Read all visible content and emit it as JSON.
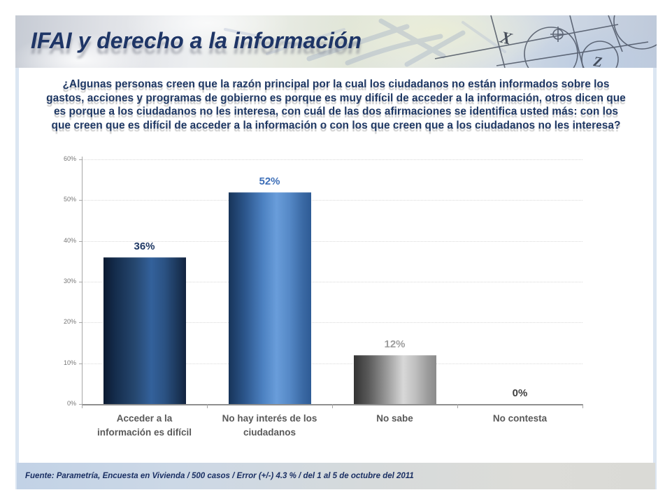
{
  "header": {
    "title": "IFAI y derecho a la información",
    "decoration_glyphs": [
      "X",
      "Z"
    ]
  },
  "question": {
    "text": "¿Algunas personas creen que la razón principal por la cual los ciudadanos no están informados sobre los gastos, acciones y programas de gobierno es porque es muy difícil de acceder a la información, otros dicen que es porque a los ciudadanos no les interesa, con cuál de las dos afirmaciones se identifica usted más: con los que creen que es difícil de acceder a la información o con los que creen que a los ciudadanos no les interesa?"
  },
  "chart_data": {
    "type": "bar",
    "title": "",
    "categories": [
      "Acceder a la información es difícil",
      "No hay interés de los ciudadanos",
      "No sabe",
      "No contesta"
    ],
    "category_lines": [
      [
        "Acceder a la",
        "información es difícil"
      ],
      [
        "No hay interés de los",
        "ciudadanos"
      ],
      [
        "No sabe"
      ],
      [
        "No contesta"
      ]
    ],
    "values": [
      36,
      52,
      12,
      0
    ],
    "data_labels": [
      "36%",
      "52%",
      "12%",
      "0%"
    ],
    "xlabel": "",
    "ylabel": "",
    "ylim": [
      0,
      60
    ],
    "y_ticks": [
      0,
      10,
      20,
      30,
      40,
      50,
      60
    ],
    "y_tick_labels": [
      "0%",
      "10%",
      "20%",
      "30%",
      "40%",
      "50%",
      "60%"
    ],
    "grid": true,
    "legend": false,
    "axis_color": "#a6a6a6",
    "baseline_color": "#8f8f8f",
    "gridline_color": "#d9d9d9",
    "tick_label_color": "#757575",
    "category_label_color": "#595959",
    "bar_styles": [
      {
        "stops": [
          "#0b1a31 0%",
          "#142c4c 14%",
          "#26476f 38%",
          "#33619b 58%",
          "#2b5283 74%",
          "#1b3659 90%",
          "#12233f 100%"
        ],
        "label_color": "#1f3864"
      },
      {
        "stops": [
          "#173459 0%",
          "#2c568c 20%",
          "#4d82c2 42%",
          "#699dda 58%",
          "#5588c6 74%",
          "#3a69a4 90%",
          "#2e5b95 100%"
        ],
        "label_color": "#3e6fb8"
      },
      {
        "stops": [
          "#333333 0%",
          "#5a5a5a 18%",
          "#9a9a9a 40%",
          "#d8d8d8 60%",
          "#c0c0c0 74%",
          "#9b9b9b 90%",
          "#8b8b8b 100%"
        ],
        "label_color": "#9e9e9e"
      },
      {
        "stops": [
          "#404040 0%",
          "#404040 100%"
        ],
        "label_color": "#3f3f3f"
      }
    ]
  },
  "footer": {
    "source": "Fuente: Parametría, Encuesta en Vivienda / 500 casos / Error (+/-) 4.3 % / del 1 al 5 de octubre del 2011"
  },
  "colors": {
    "title": "#1e3566",
    "question": "#1f3864",
    "footer_text": "#1a2f63"
  }
}
